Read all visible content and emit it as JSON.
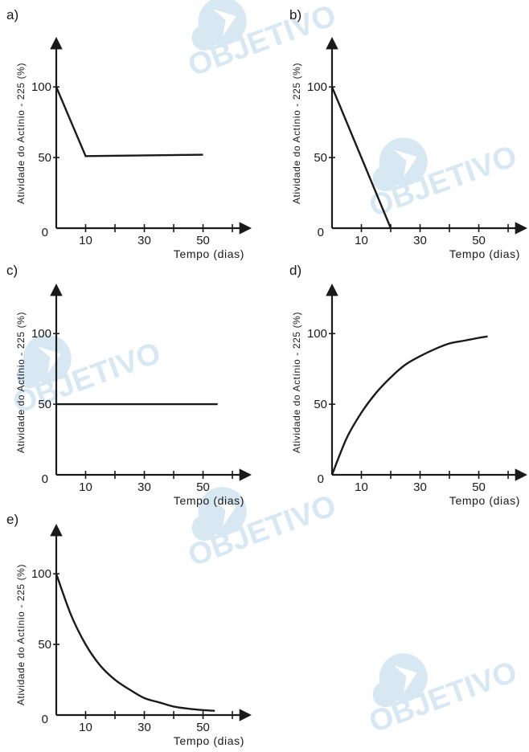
{
  "watermark": {
    "text": "OBJETIVO",
    "color": "#d7e8f3",
    "icon": "objetivo-logo-icon"
  },
  "style": {
    "line_color": "#1a1a1a"
  },
  "chart_data": [
    {
      "panel": "a)",
      "type": "line",
      "xlabel": "Tempo (dias)",
      "ylabel": "Atividade do Actínio - 225 (%)",
      "xticks": [
        10,
        30,
        50
      ],
      "yticks": [
        0,
        50,
        100
      ],
      "xlim": [
        0,
        63
      ],
      "ylim": [
        0,
        128
      ],
      "series": [
        {
          "x": [
            0,
            10,
            50
          ],
          "y": [
            100,
            51,
            52
          ]
        }
      ]
    },
    {
      "panel": "b)",
      "type": "line",
      "xlabel": "Tempo (dias)",
      "ylabel": "Atividade do Actínio - 225 (%)",
      "xticks": [
        10,
        30,
        50
      ],
      "yticks": [
        0,
        50,
        100
      ],
      "xlim": [
        0,
        63
      ],
      "ylim": [
        0,
        128
      ],
      "series": [
        {
          "x": [
            0,
            20
          ],
          "y": [
            100,
            0
          ]
        }
      ]
    },
    {
      "panel": "c)",
      "type": "line",
      "xlabel": "Tempo (dias)",
      "ylabel": "Atividade do Actínio - 225 (%)",
      "xticks": [
        10,
        30,
        50
      ],
      "yticks": [
        0,
        50,
        100
      ],
      "xlim": [
        0,
        63
      ],
      "ylim": [
        0,
        128
      ],
      "series": [
        {
          "x": [
            0,
            55
          ],
          "y": [
            50,
            50
          ]
        }
      ]
    },
    {
      "panel": "d)",
      "type": "line",
      "xlabel": "Tempo (dias)",
      "ylabel": "Atividade do Actínio - 225 (%)",
      "xticks": [
        10,
        30,
        50
      ],
      "yticks": [
        0,
        50,
        100
      ],
      "xlim": [
        0,
        63
      ],
      "ylim": [
        0,
        128
      ],
      "series": [
        {
          "x": [
            0,
            5,
            10,
            15,
            20,
            25,
            30,
            35,
            40,
            45,
            50,
            53
          ],
          "y": [
            0,
            26,
            44,
            58,
            69,
            78,
            84,
            89,
            93,
            95,
            97,
            98
          ]
        }
      ]
    },
    {
      "panel": "e)",
      "type": "line",
      "xlabel": "Tempo (dias)",
      "ylabel": "Atividade do Actínio - 225 (%)",
      "xticks": [
        10,
        30,
        50
      ],
      "yticks": [
        0,
        50,
        100
      ],
      "xlim": [
        0,
        63
      ],
      "ylim": [
        0,
        128
      ],
      "series": [
        {
          "x": [
            0,
            5,
            10,
            15,
            20,
            25,
            30,
            35,
            40,
            45,
            50,
            54
          ],
          "y": [
            100,
            71,
            50,
            35,
            25,
            18,
            12,
            9,
            6,
            4.5,
            3.5,
            3
          ]
        }
      ]
    }
  ]
}
